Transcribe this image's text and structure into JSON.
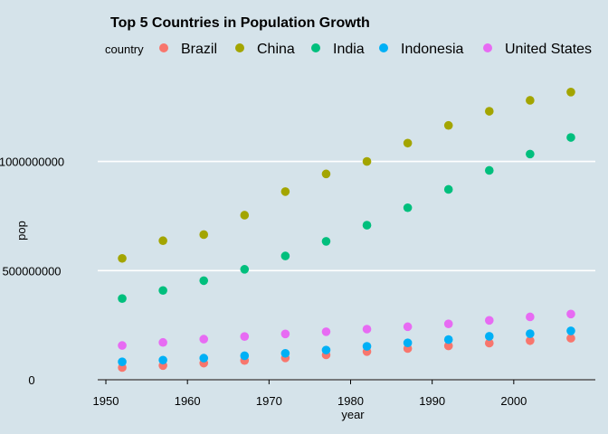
{
  "chart_data": {
    "type": "scatter",
    "title": "Top 5 Countries in Population Growth",
    "xlabel": "year",
    "ylabel": "pop",
    "xlim": [
      1949,
      2010
    ],
    "ylim": [
      0,
      1400000000
    ],
    "x_ticks": [
      1950,
      1960,
      1970,
      1980,
      1990,
      2000
    ],
    "x_tick_labels": [
      "1950",
      "1960",
      "1970",
      "1980",
      "1990",
      "2000"
    ],
    "y_ticks": [
      0,
      500000000,
      1000000000
    ],
    "y_tick_labels": [
      "0",
      "500000000",
      "1000000000"
    ],
    "grid": true,
    "legend": {
      "title": "country",
      "position": "top"
    },
    "x": [
      1952,
      1957,
      1962,
      1967,
      1972,
      1977,
      1982,
      1987,
      1992,
      1997,
      2002,
      2007
    ],
    "series": [
      {
        "name": "Brazil",
        "color": "#f8766d",
        "values": [
          56000000,
          65000000,
          76000000,
          88000000,
          100000000,
          114000000,
          129000000,
          143000000,
          155000000,
          168000000,
          179000000,
          190000000
        ]
      },
      {
        "name": "China",
        "color": "#a3a500",
        "values": [
          556000000,
          637000000,
          665000000,
          754000000,
          862000000,
          943000000,
          1000000000,
          1084000000,
          1165000000,
          1230000000,
          1280000000,
          1318000000
        ]
      },
      {
        "name": "India",
        "color": "#00bf7d",
        "values": [
          372000000,
          409000000,
          454000000,
          506000000,
          567000000,
          634000000,
          708000000,
          788000000,
          872000000,
          959000000,
          1034000000,
          1110000000
        ]
      },
      {
        "name": "Indonesia",
        "color": "#00b0f6",
        "values": [
          82000000,
          90000000,
          99000000,
          110000000,
          121000000,
          136000000,
          153000000,
          169000000,
          184000000,
          199000000,
          211000000,
          224000000
        ]
      },
      {
        "name": "United States",
        "color": "#e76bf3",
        "values": [
          157000000,
          171000000,
          186000000,
          198000000,
          210000000,
          220000000,
          232000000,
          243000000,
          256000000,
          272000000,
          288000000,
          301000000
        ]
      }
    ]
  }
}
